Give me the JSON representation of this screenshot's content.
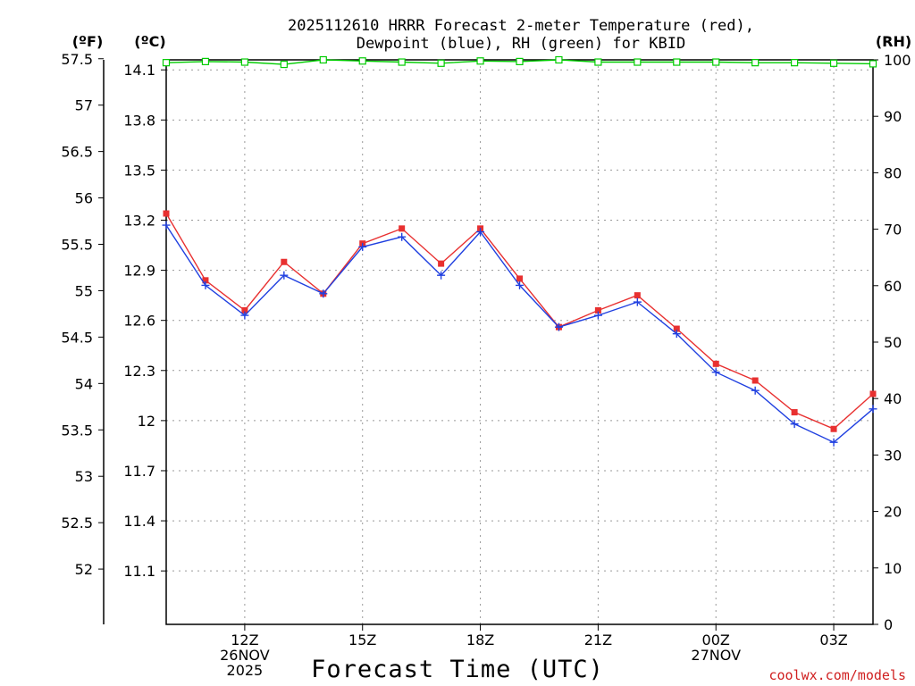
{
  "title": {
    "line1": "2025112610 HRRR Forecast 2-meter Temperature (red),",
    "line2": "Dewpoint (blue), RH (green) for KBID"
  },
  "credit": "coolwx.com/models",
  "colors": {
    "temperature": "#e83030",
    "dewpoint": "#2040e0",
    "rh": "#00cc00",
    "grid": "#999999"
  },
  "chart_data": {
    "type": "line",
    "title": "2025112610 HRRR Forecast 2-meter Temperature (red), Dewpoint (blue), RH (green) for KBID",
    "xlabel": "Forecast Time (UTC)",
    "unit_labels": {
      "fahrenheit": "(ºF)",
      "celsius": "(ºC)",
      "rh": "(RH)"
    },
    "x": [
      10,
      11,
      12,
      13,
      14,
      15,
      16,
      17,
      18,
      19,
      20,
      21,
      22,
      23,
      24,
      25,
      26,
      27,
      28
    ],
    "xlim": [
      10,
      28
    ],
    "x_ticks": [
      {
        "x": 12,
        "lines": [
          "12Z",
          "26NOV",
          "2025"
        ]
      },
      {
        "x": 15,
        "lines": [
          "15Z"
        ]
      },
      {
        "x": 18,
        "lines": [
          "18Z"
        ]
      },
      {
        "x": 21,
        "lines": [
          "21Z"
        ]
      },
      {
        "x": 24,
        "lines": [
          "00Z",
          "27NOV"
        ]
      },
      {
        "x": 27,
        "lines": [
          "03Z"
        ]
      }
    ],
    "celsius_axis": {
      "ylim": [
        10.78,
        14.16
      ],
      "ticks": [
        "11.1",
        "11.4",
        "11.7",
        "12",
        "12.3",
        "12.6",
        "12.9",
        "13.2",
        "13.5",
        "13.8",
        "14.1"
      ]
    },
    "fahrenheit_axis": {
      "ticks": [
        "52",
        "52.5",
        "53",
        "53.5",
        "54",
        "54.5",
        "55",
        "55.5",
        "56",
        "56.5",
        "57",
        "57.5"
      ]
    },
    "rh_axis": {
      "ylim": [
        0,
        100
      ],
      "ticks": [
        "0",
        "10",
        "20",
        "30",
        "40",
        "50",
        "60",
        "70",
        "80",
        "90",
        "100"
      ]
    },
    "series": [
      {
        "name": "Temperature",
        "axis": "celsius",
        "marker": "square",
        "values": [
          13.24,
          12.84,
          12.66,
          12.95,
          12.76,
          13.06,
          13.15,
          12.94,
          13.15,
          12.85,
          12.56,
          12.66,
          12.75,
          12.55,
          12.34,
          12.24,
          12.05,
          11.95,
          12.16
        ]
      },
      {
        "name": "Dewpoint",
        "axis": "celsius",
        "marker": "plus",
        "values": [
          13.17,
          12.81,
          12.63,
          12.87,
          12.76,
          13.04,
          13.1,
          12.87,
          13.13,
          12.81,
          12.56,
          12.63,
          12.71,
          12.52,
          12.29,
          12.18,
          11.98,
          11.87,
          12.07
        ]
      },
      {
        "name": "RH",
        "axis": "rh",
        "marker": "open-square",
        "values": [
          99.5,
          99.7,
          99.6,
          99.2,
          100,
          99.8,
          99.6,
          99.4,
          99.8,
          99.7,
          100,
          99.6,
          99.6,
          99.6,
          99.6,
          99.5,
          99.5,
          99.4,
          99.3
        ]
      }
    ]
  }
}
